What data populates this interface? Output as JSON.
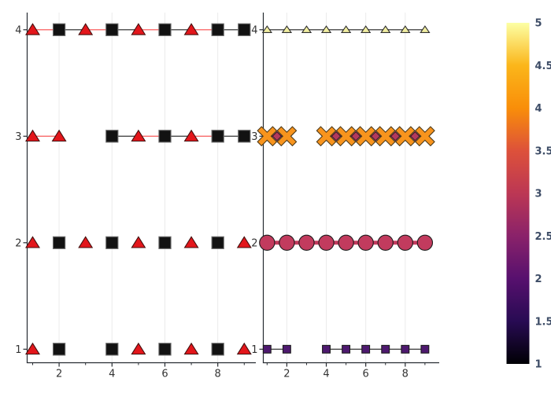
{
  "chart_data": {
    "type": "scatter",
    "title": "",
    "grid": true,
    "legend": "none",
    "line_colors": {
      "r": "#f96a6a",
      "k": "#474747",
      "c": "#c23b5e"
    },
    "shapes": {
      "T": {
        "kind": "utriangle",
        "fill": "#e3161b",
        "stroke": "#45100f",
        "hw": 8.5,
        "htop": 7.5,
        "hbot": 6.2
      },
      "S": {
        "kind": "square",
        "fill": "#121212",
        "stroke": "#6e6e6e",
        "half": 7.6
      },
      "t": {
        "kind": "utriangle",
        "fill": "#f1eea1",
        "stroke": "#2e2e2e",
        "hw": 5.6,
        "htop": 4.6,
        "hbot": 3.6
      },
      "x": {
        "kind": "xcross",
        "fill": "#f8941d",
        "stroke": "#4d3a1a",
        "hl": 13.6,
        "haw": 3.6
      },
      "o": {
        "kind": "circle",
        "fill": "#c23b5e",
        "stroke": "#1c1c1c",
        "r": 9.6
      },
      "d": {
        "kind": "diamond",
        "fill": "#b23a5c",
        "stroke": "#40101f",
        "hd": 5.7
      },
      "q": {
        "kind": "square",
        "fill": "#4e196f",
        "stroke": "#1a1a1a",
        "half": 4.9
      }
    },
    "subplots": [
      {
        "name": "left",
        "xlim": [
          0.792,
          9.438
        ],
        "ylim": [
          0.873,
          4.161
        ],
        "x_ticks": [
          2,
          4,
          6,
          8
        ],
        "x_minor_ticks": [
          1,
          3,
          5,
          7,
          9
        ],
        "y_ticks": [
          1,
          2,
          3,
          4
        ],
        "rows": [
          {
            "y": 1,
            "segments": [],
            "markers": [
              [
                1,
                "T"
              ],
              [
                2,
                "S"
              ],
              [
                4,
                "S"
              ],
              [
                5,
                "T"
              ],
              [
                6,
                "S"
              ],
              [
                7,
                "T"
              ],
              [
                8,
                "S"
              ],
              [
                9,
                "T"
              ]
            ]
          },
          {
            "y": 2,
            "segments": [],
            "markers": [
              [
                1,
                "T"
              ],
              [
                2,
                "S"
              ],
              [
                3,
                "T"
              ],
              [
                4,
                "S"
              ],
              [
                5,
                "T"
              ],
              [
                6,
                "S"
              ],
              [
                7,
                "T"
              ],
              [
                8,
                "S"
              ],
              [
                9,
                "T"
              ]
            ]
          },
          {
            "y": 3,
            "segments": [
              [
                1,
                2,
                "r",
                1.3
              ],
              [
                4,
                5,
                "k",
                1.3
              ],
              [
                5,
                6,
                "r",
                1.3
              ],
              [
                6,
                7,
                "k",
                1.3
              ],
              [
                7,
                8,
                "r",
                1.3
              ],
              [
                8,
                9,
                "k",
                1.3
              ]
            ],
            "markers": [
              [
                1,
                "T"
              ],
              [
                2,
                "T"
              ],
              [
                4,
                "S"
              ],
              [
                5,
                "T"
              ],
              [
                6,
                "S"
              ],
              [
                7,
                "T"
              ],
              [
                8,
                "S"
              ],
              [
                9,
                "S"
              ]
            ]
          },
          {
            "y": 4,
            "segments": [
              [
                1,
                2,
                "r",
                1.3
              ],
              [
                2,
                3,
                "k",
                1.3
              ],
              [
                3,
                4,
                "r",
                1.3
              ],
              [
                4,
                5,
                "k",
                1.3
              ],
              [
                5,
                6,
                "r",
                1.3
              ],
              [
                6,
                7,
                "k",
                1.3
              ],
              [
                7,
                8,
                "r",
                1.3
              ],
              [
                8,
                9,
                "k",
                1.3
              ]
            ],
            "markers": [
              [
                1,
                "T"
              ],
              [
                2,
                "S"
              ],
              [
                3,
                "T"
              ],
              [
                4,
                "S"
              ],
              [
                5,
                "T"
              ],
              [
                6,
                "S"
              ],
              [
                7,
                "T"
              ],
              [
                8,
                "S"
              ],
              [
                9,
                "S"
              ]
            ]
          }
        ]
      },
      {
        "name": "right",
        "xlim": [
          0.808,
          9.723
        ],
        "ylim": [
          0.873,
          4.161
        ],
        "x_ticks": [
          2,
          4,
          6,
          8
        ],
        "x_minor_ticks": [
          1,
          3,
          5,
          7,
          9
        ],
        "y_ticks": [
          1,
          2,
          3,
          4
        ],
        "rows": [
          {
            "y": 1,
            "marker_z": 2,
            "segments": [
              [
                1,
                2,
                "k",
                1.4
              ],
              [
                4,
                9,
                "k",
                1.4
              ]
            ],
            "markers": [
              [
                1,
                "q"
              ],
              [
                2,
                "q"
              ],
              [
                4,
                "q"
              ],
              [
                5,
                "q"
              ],
              [
                6,
                "q"
              ],
              [
                7,
                "q"
              ],
              [
                8,
                "q"
              ],
              [
                9,
                "q"
              ]
            ]
          },
          {
            "y": 2,
            "marker_z": 3,
            "segments": [
              [
                1,
                9,
                "c",
                5
              ]
            ],
            "markers": [
              [
                1,
                "o"
              ],
              [
                2,
                "o"
              ],
              [
                3,
                "o"
              ],
              [
                4,
                "o"
              ],
              [
                5,
                "o"
              ],
              [
                6,
                "o"
              ],
              [
                7,
                "o"
              ],
              [
                8,
                "o"
              ],
              [
                9,
                "o"
              ]
            ]
          },
          {
            "y": 3,
            "marker_z": 4,
            "segments": [
              [
                1,
                2,
                "k",
                1.4
              ],
              [
                4,
                9,
                "k",
                1.4
              ]
            ],
            "markers": [
              [
                1,
                "x"
              ],
              [
                2,
                "x"
              ],
              [
                4,
                "x"
              ],
              [
                5,
                "x"
              ],
              [
                6,
                "x"
              ],
              [
                7,
                "x"
              ],
              [
                8,
                "x"
              ],
              [
                9,
                "x"
              ],
              [
                1.5,
                "d"
              ],
              [
                4.5,
                "d"
              ],
              [
                5.5,
                "d"
              ],
              [
                6.5,
                "d"
              ],
              [
                7.5,
                "d"
              ],
              [
                8.5,
                "d"
              ]
            ]
          },
          {
            "y": 4,
            "marker_z": 5,
            "segments": [
              [
                1,
                9,
                "k",
                1.4
              ]
            ],
            "markers": [
              [
                1,
                "t"
              ],
              [
                2,
                "t"
              ],
              [
                3,
                "t"
              ],
              [
                4,
                "t"
              ],
              [
                5,
                "t"
              ],
              [
                6,
                "t"
              ],
              [
                7,
                "t"
              ],
              [
                8,
                "t"
              ],
              [
                9,
                "t"
              ]
            ]
          }
        ]
      }
    ],
    "colorbar": {
      "range": [
        1,
        5
      ],
      "ticks": [
        "1",
        "1.5",
        "2",
        "2.5",
        "3",
        "3.5",
        "4",
        "4.5",
        "5"
      ],
      "tick_values": [
        1,
        1.5,
        2,
        2.5,
        3,
        3.5,
        4,
        4.5,
        5
      ],
      "gradient_stops": [
        "#000004",
        "#280b53",
        "#57106e",
        "#8a226a",
        "#bc3754",
        "#dd513a",
        "#f98e09",
        "#fbb61a",
        "#fcffa4"
      ],
      "label_color": "#3d4c66"
    },
    "style": {
      "spine_color": "#262b31",
      "grid_color": "#ebebeb",
      "tick_label_color": "#333333",
      "background": "#ffffff"
    }
  }
}
